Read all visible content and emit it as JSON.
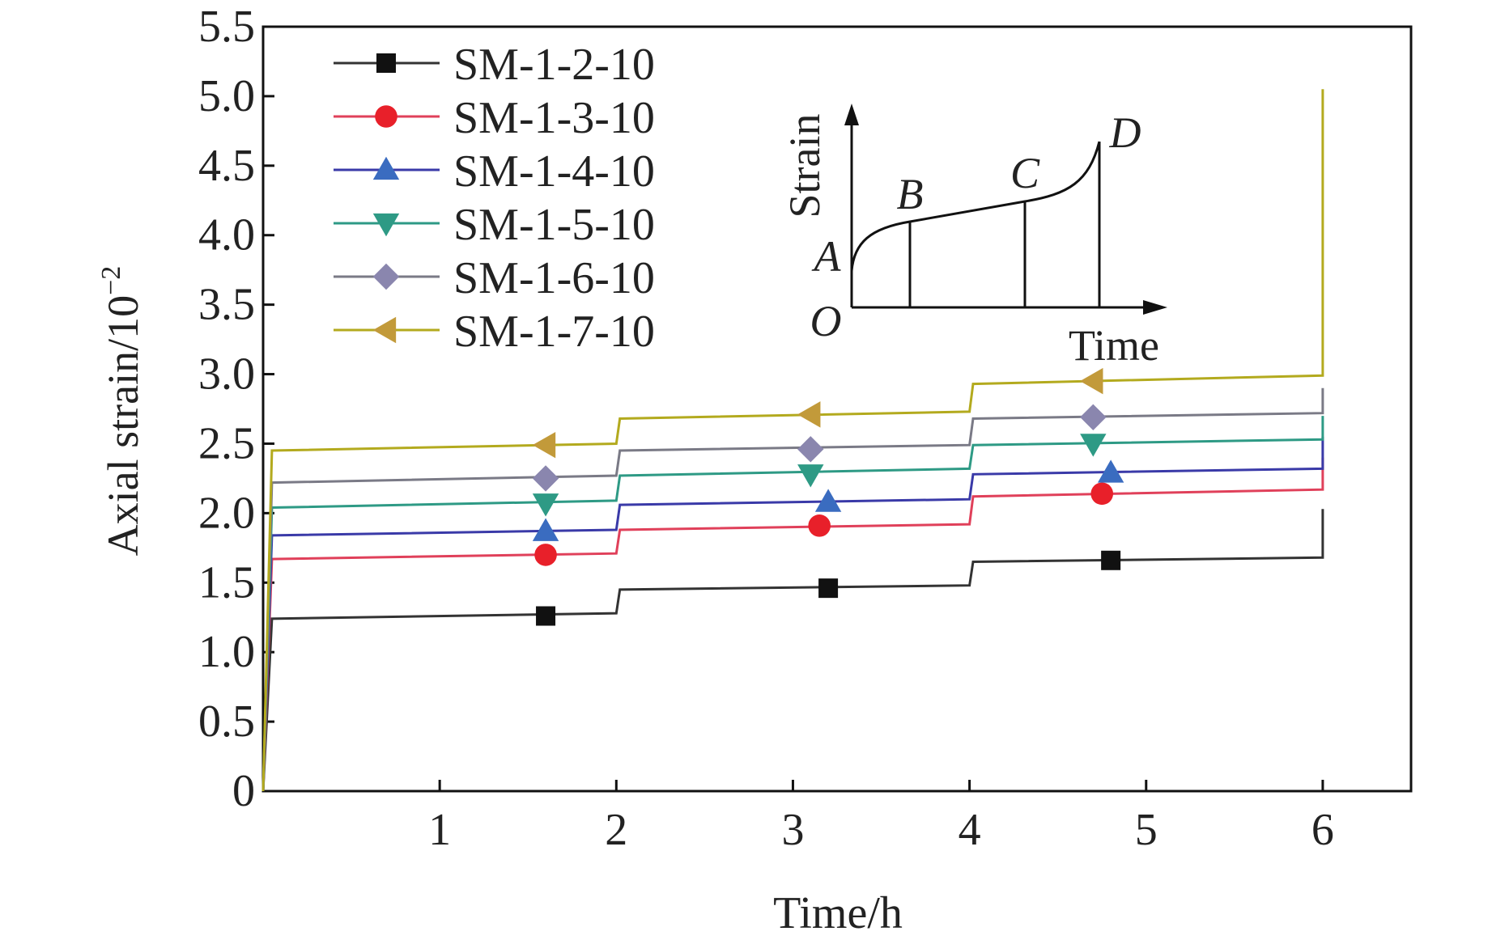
{
  "chart_data": {
    "type": "line",
    "xlabel": "Time/h",
    "ylabel_main": "Axial strain/10",
    "ylabel_exp": "−2",
    "xlim": [
      0,
      6.5
    ],
    "ylim": [
      0,
      5.5
    ],
    "xticks": [
      1,
      2,
      3,
      4,
      5,
      6
    ],
    "yticks": [
      0,
      0.5,
      1.0,
      1.5,
      2.0,
      2.5,
      3.0,
      3.5,
      4.0,
      4.5,
      5.0,
      5.5
    ],
    "ytick_labels": [
      "0",
      "0.5",
      "1.0",
      "1.5",
      "2.0",
      "2.5",
      "3.0",
      "3.5",
      "4.0",
      "4.5",
      "5.0",
      "5.5"
    ],
    "series": [
      {
        "name": "SM-1-2-10",
        "color": "#333333",
        "marker": "square",
        "marker_color": "#111111",
        "points": [
          [
            0,
            0
          ],
          [
            0.05,
            1.24
          ],
          [
            2,
            1.28
          ],
          [
            2.02,
            1.45
          ],
          [
            4,
            1.48
          ],
          [
            4.02,
            1.65
          ],
          [
            6,
            1.68
          ],
          [
            6.0,
            2.03
          ]
        ],
        "markers": [
          [
            1.6,
            1.26
          ],
          [
            3.2,
            1.46
          ],
          [
            4.8,
            1.66
          ]
        ]
      },
      {
        "name": "SM-1-3-10",
        "color": "#e0405a",
        "marker": "circle",
        "marker_color": "#e8202a",
        "points": [
          [
            0,
            0
          ],
          [
            0.05,
            1.67
          ],
          [
            2,
            1.71
          ],
          [
            2.02,
            1.88
          ],
          [
            4,
            1.92
          ],
          [
            4.02,
            2.12
          ],
          [
            6,
            2.17
          ],
          [
            6.0,
            2.4
          ]
        ],
        "markers": [
          [
            1.6,
            1.7
          ],
          [
            3.15,
            1.91
          ],
          [
            4.75,
            2.14
          ]
        ]
      },
      {
        "name": "SM-1-4-10",
        "color": "#3a3aa8",
        "marker": "triangle-up",
        "marker_color": "#3a6cc0",
        "points": [
          [
            0,
            0
          ],
          [
            0.05,
            1.84
          ],
          [
            2,
            1.88
          ],
          [
            2.02,
            2.06
          ],
          [
            4,
            2.1
          ],
          [
            4.02,
            2.28
          ],
          [
            6,
            2.32
          ],
          [
            6.0,
            2.55
          ]
        ],
        "markers": [
          [
            1.6,
            1.87
          ],
          [
            3.2,
            2.08
          ],
          [
            4.8,
            2.29
          ]
        ]
      },
      {
        "name": "SM-1-5-10",
        "color": "#2e9a85",
        "marker": "triangle-down",
        "marker_color": "#2e9a85",
        "points": [
          [
            0,
            0
          ],
          [
            0.05,
            2.04
          ],
          [
            2,
            2.09
          ],
          [
            2.02,
            2.27
          ],
          [
            4,
            2.32
          ],
          [
            4.02,
            2.49
          ],
          [
            6,
            2.53
          ],
          [
            6.0,
            2.7
          ]
        ],
        "markers": [
          [
            1.6,
            2.07
          ],
          [
            3.1,
            2.28
          ],
          [
            4.7,
            2.5
          ]
        ]
      },
      {
        "name": "SM-1-6-10",
        "color": "#7a7a86",
        "marker": "diamond",
        "marker_color": "#8a86ae",
        "points": [
          [
            0,
            0
          ],
          [
            0.05,
            2.22
          ],
          [
            2,
            2.27
          ],
          [
            2.02,
            2.45
          ],
          [
            4,
            2.49
          ],
          [
            4.02,
            2.68
          ],
          [
            6,
            2.72
          ],
          [
            6.0,
            2.9
          ]
        ],
        "markers": [
          [
            1.6,
            2.25
          ],
          [
            3.1,
            2.46
          ],
          [
            4.7,
            2.69
          ]
        ]
      },
      {
        "name": "SM-1-7-10",
        "color": "#b3aa1e",
        "marker": "triangle-left",
        "marker_color": "#c29a3a",
        "points": [
          [
            0,
            0
          ],
          [
            0.05,
            2.45
          ],
          [
            2,
            2.5
          ],
          [
            2.02,
            2.68
          ],
          [
            4,
            2.73
          ],
          [
            4.02,
            2.93
          ],
          [
            6,
            2.99
          ],
          [
            6.0,
            5.05
          ]
        ],
        "markers": [
          [
            1.6,
            2.49
          ],
          [
            3.1,
            2.71
          ],
          [
            4.7,
            2.95
          ]
        ]
      }
    ],
    "legend_position": "top-left",
    "inset": {
      "ylabel": "Strain",
      "xlabel": "Time",
      "origin": "O",
      "points": [
        "A",
        "B",
        "C",
        "D"
      ]
    }
  }
}
